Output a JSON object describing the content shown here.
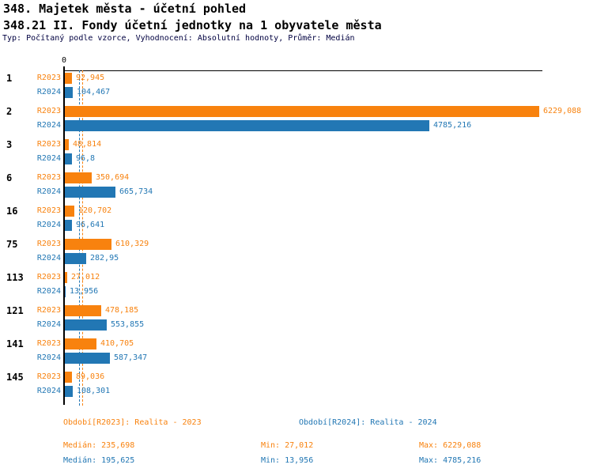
{
  "header": {
    "title": "348. Majetek města - účetní pohled",
    "subtitle": "348.21 II. Fondy účetní jednotky na 1 obyvatele města",
    "meta": "Typ: Počítaný podle vzorce, Vyhodnocení: Absolutní hodnoty, Průměr: Medián"
  },
  "chart_data": {
    "type": "bar",
    "orientation": "horizontal",
    "title": "348. Majetek města - účetní pohled",
    "subtitle": "348.21 II. Fondy účetní jednotky na 1 obyvatele města",
    "note": "Typ: Počítaný podle vzorce, Vyhodnocení: Absolutní hodnoty, Průměr: Medián",
    "categories": [
      "1",
      "2",
      "3",
      "6",
      "16",
      "75",
      "113",
      "121",
      "141",
      "145"
    ],
    "series": [
      {
        "name": "R2023",
        "legend": "Období[R2023]: Realita - 2023",
        "color": "#f8820e",
        "values": [
          92.945,
          6229.088,
          48.814,
          350.694,
          120.702,
          610.329,
          27.012,
          478.185,
          410.705,
          89.036
        ],
        "value_labels": [
          "92,945",
          "6229,088",
          "48,814",
          "350,694",
          "120,702",
          "610,329",
          "27,012",
          "478,185",
          "410,705",
          "89,036"
        ],
        "median": 235.698,
        "min": 27.012,
        "max": 6229.088
      },
      {
        "name": "R2024",
        "legend": "Období[R2024]: Realita - 2024",
        "color": "#2277b4",
        "values": [
          104.467,
          4785.216,
          96.8,
          665.734,
          96.641,
          282.95,
          13.956,
          553.855,
          587.347,
          108.301
        ],
        "value_labels": [
          "104,467",
          "4785,216",
          "96,8",
          "665,734",
          "96,641",
          "282,95",
          "13,956",
          "553,855",
          "587,347",
          "108,301"
        ],
        "median": 195.625,
        "min": 13.956,
        "max": 4785.216
      }
    ],
    "x_axis": {
      "zero_label": "0",
      "min": 0,
      "max": 6229.088,
      "gridlines": false
    },
    "median_lines": true,
    "legend_position": "bottom"
  },
  "footer": {
    "legend_r2023": "Období[R2023]: Realita - 2023",
    "legend_r2024": "Období[R2024]: Realita - 2024",
    "stats_r2023": {
      "median": "Medián: 235,698",
      "min": "Min: 27,012",
      "max": "Max: 6229,088"
    },
    "stats_r2024": {
      "median": "Medián: 195,625",
      "min": "Min: 13,956",
      "max": "Max: 4785,216"
    }
  }
}
